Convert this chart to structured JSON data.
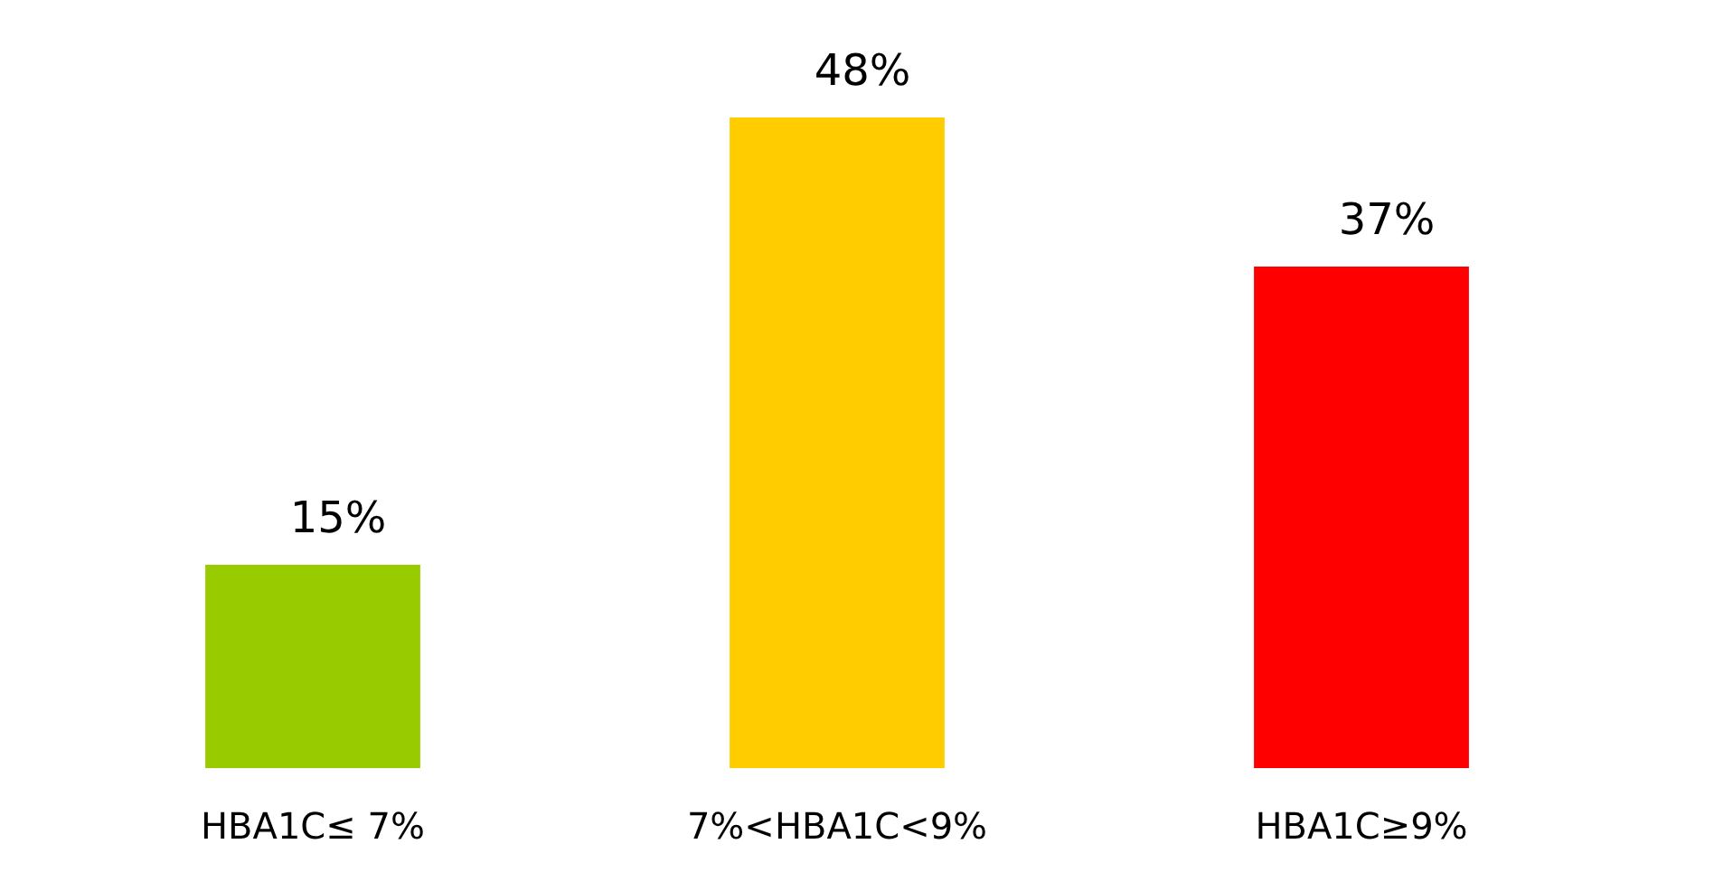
{
  "chart_data": {
    "type": "bar",
    "categories": [
      "HBA1C≤ 7%",
      "7%<HBA1C<9%",
      "HBA1C≥9%"
    ],
    "values": [
      15,
      48,
      37
    ],
    "colors": [
      "#99cc00",
      "#ffcc00",
      "#ff0000"
    ],
    "value_labels": [
      "15%",
      "48%",
      "37%"
    ],
    "tick_labels": "x"
  }
}
